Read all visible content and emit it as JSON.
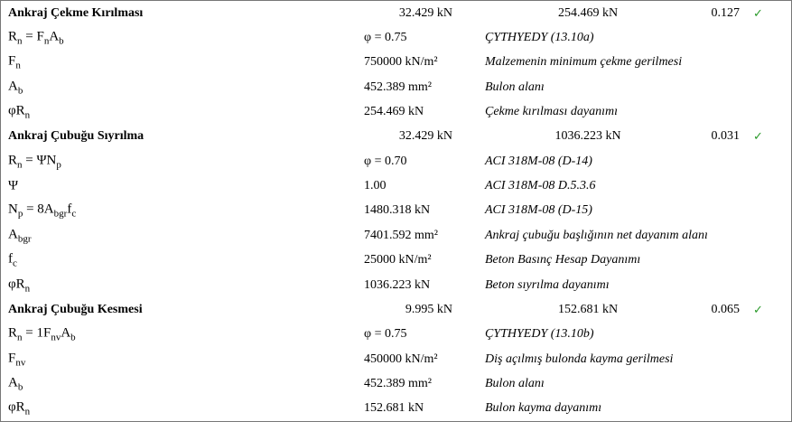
{
  "sections": [
    {
      "title": "Ankraj Çekme Kırılması",
      "demand": "32.429 kN",
      "capacity": "254.469 kN",
      "ratio": "0.127",
      "check": "✓",
      "rows": [
        {
          "symbol": [
            "R",
            "n",
            " = F",
            "n",
            "A",
            "b"
          ],
          "value": "φ = 0.75",
          "description": "ÇYTHYEDY (13.10a)"
        },
        {
          "symbol": [
            "F",
            "n"
          ],
          "value": "750000 kN/m²",
          "description": "Malzemenin minimum çekme gerilmesi"
        },
        {
          "symbol": [
            "A",
            "b"
          ],
          "value": "452.389 mm²",
          "description": "Bulon alanı"
        },
        {
          "symbol": [
            "φR",
            "n"
          ],
          "value": "254.469 kN",
          "description": "Çekme kırılması dayanımı"
        }
      ]
    },
    {
      "title": "Ankraj Çubuğu Sıyrılma",
      "demand": "32.429 kN",
      "capacity": "1036.223 kN",
      "ratio": "0.031",
      "check": "✓",
      "rows": [
        {
          "symbol": [
            "R",
            "n",
            " = ΨN",
            "p"
          ],
          "value": "φ = 0.70",
          "description": "ACI 318M-08 (D-14)"
        },
        {
          "symbol": [
            "Ψ"
          ],
          "value": "1.00",
          "description": "ACI 318M-08 D.5.3.6"
        },
        {
          "symbol": [
            "N",
            "p",
            " = 8A",
            "bgr",
            "f",
            "c"
          ],
          "value": "1480.318 kN",
          "description": "ACI 318M-08 (D-15)"
        },
        {
          "symbol": [
            "A",
            "bgr"
          ],
          "value": "7401.592 mm²",
          "description": "Ankraj çubuğu başlığının net dayanım alanı"
        },
        {
          "symbol": [
            "f",
            "c"
          ],
          "value": "25000 kN/m²",
          "description": "Beton Basınç Hesap Dayanımı"
        },
        {
          "symbol": [
            "φR",
            "n"
          ],
          "value": "1036.223 kN",
          "description": "Beton sıyrılma dayanımı"
        }
      ]
    },
    {
      "title": "Ankraj Çubuğu Kesmesi",
      "demand": "9.995 kN",
      "capacity": "152.681 kN",
      "ratio": "0.065",
      "check": "✓",
      "rows": [
        {
          "symbol": [
            "R",
            "n",
            " = 1F",
            "nv",
            "A",
            "b"
          ],
          "value": "φ = 0.75",
          "description": "ÇYTHYEDY (13.10b)"
        },
        {
          "symbol": [
            "F",
            "nv"
          ],
          "value": "450000 kN/m²",
          "description": "Diş açılmış bulonda kayma gerilmesi"
        },
        {
          "symbol": [
            "A",
            "b"
          ],
          "value": "452.389 mm²",
          "description": "Bulon alanı"
        },
        {
          "symbol": [
            "φR",
            "n"
          ],
          "value": "152.681 kN",
          "description": "Bulon kayma dayanımı"
        }
      ]
    }
  ]
}
